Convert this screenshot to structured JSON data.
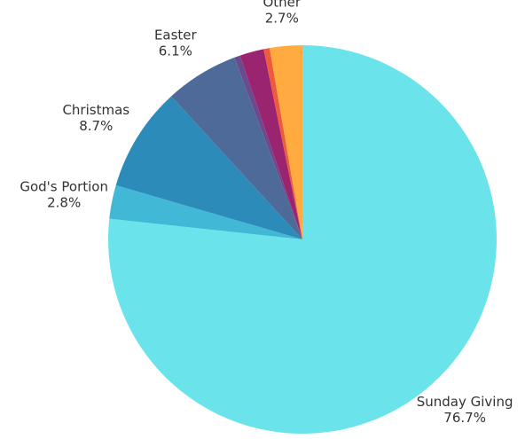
{
  "chart_data": {
    "type": "pie",
    "categories": [
      "Sunday Giving",
      "God's Portion",
      "Christmas",
      "Easter",
      null,
      null,
      null,
      "Other"
    ],
    "values": [
      76.7,
      2.8,
      8.7,
      6.1,
      0.5,
      2.0,
      0.5,
      2.7
    ],
    "value_labels": [
      "76.7%",
      "2.8%",
      "8.7%",
      "6.1%",
      null,
      null,
      null,
      "2.7%"
    ],
    "colors": [
      "#6ae4ea",
      "#41b8d5",
      "#2d8bba",
      "#4e6a98",
      "#6b4a8e",
      "#9a2470",
      "#ef5a3c",
      "#ffab40"
    ]
  }
}
